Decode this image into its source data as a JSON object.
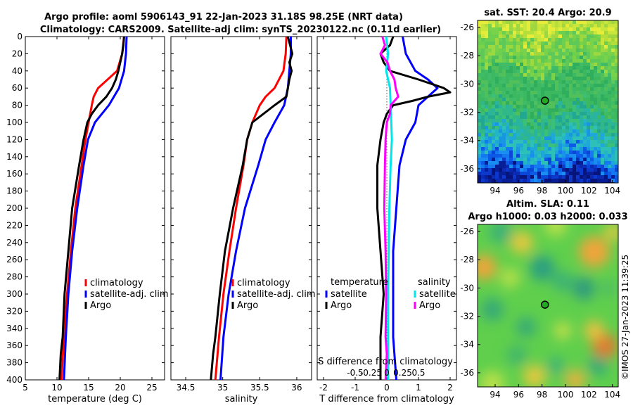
{
  "title_line1": "Argo profile: aoml 5906143_91 22-Jan-2023 31.18S 98.25E (NRT data)",
  "title_line2": "Climatology: CARS2009. Satellite-adj clim: synTS_20230122.nc (0.11d earlier)",
  "watermark": "©IMOS 27-Jan-2023 11:39:25",
  "colors": {
    "red": "#ff0000",
    "blue": "#0000ff",
    "black": "#000000",
    "cyan": "#00e5ee",
    "magenta": "#ff00ff"
  },
  "chart_data": [
    {
      "id": "temperature",
      "type": "line",
      "xlabel": "temperature (deg C)",
      "ylabel": "",
      "xlim": [
        5,
        27
      ],
      "ylim": [
        400,
        0
      ],
      "xticks": [
        5,
        10,
        15,
        20,
        25
      ],
      "yticks": [
        0,
        20,
        40,
        60,
        80,
        100,
        120,
        140,
        160,
        180,
        200,
        220,
        240,
        260,
        280,
        300,
        320,
        340,
        360,
        380,
        400
      ],
      "legend": [
        "climatology",
        "satellite-adj. clim",
        "Argo"
      ],
      "series": [
        {
          "name": "climatology",
          "color": "red",
          "depth": [
            0,
            20,
            40,
            50,
            60,
            70,
            80,
            100,
            120,
            150,
            200,
            250,
            300,
            350,
            400
          ],
          "values": [
            20.6,
            20.3,
            19.5,
            18.0,
            16.5,
            15.8,
            15.5,
            15.0,
            14.5,
            13.9,
            12.9,
            12.2,
            11.6,
            11.1,
            10.7
          ]
        },
        {
          "name": "satellite-adj. clim",
          "color": "blue",
          "depth": [
            0,
            20,
            40,
            60,
            80,
            100,
            120,
            150,
            200,
            250,
            300,
            350,
            400
          ],
          "values": [
            21.0,
            20.9,
            20.6,
            19.8,
            18.2,
            16.0,
            14.9,
            14.2,
            13.2,
            12.4,
            11.8,
            11.4,
            11.1
          ]
        },
        {
          "name": "Argo",
          "color": "black",
          "depth": [
            0,
            10,
            20,
            30,
            40,
            50,
            60,
            70,
            80,
            90,
            100,
            120,
            150,
            200,
            250,
            300,
            350,
            370,
            400
          ],
          "values": [
            20.6,
            20.5,
            20.3,
            20.0,
            19.7,
            19.3,
            18.7,
            17.8,
            16.5,
            15.5,
            14.8,
            14.2,
            13.5,
            12.4,
            11.8,
            11.2,
            10.9,
            10.6,
            10.4
          ]
        }
      ]
    },
    {
      "id": "salinity",
      "type": "line",
      "xlabel": "salinity",
      "xlim": [
        34.3,
        36.2
      ],
      "ylim": [
        400,
        0
      ],
      "xticks": [
        34.5,
        35,
        35.5,
        36
      ],
      "xticklabels": [
        "34.5",
        "35",
        "35.5",
        "36"
      ],
      "legend": [
        "climatology",
        "satellite-adj. clim",
        "Argo"
      ],
      "series": [
        {
          "name": "climatology",
          "color": "red",
          "depth": [
            0,
            20,
            40,
            60,
            70,
            80,
            100,
            120,
            150,
            200,
            250,
            300,
            350,
            400
          ],
          "values": [
            35.86,
            35.85,
            35.82,
            35.7,
            35.58,
            35.5,
            35.4,
            35.33,
            35.28,
            35.18,
            35.09,
            35.01,
            34.95,
            34.9
          ]
        },
        {
          "name": "satellite-adj. clim",
          "color": "blue",
          "depth": [
            0,
            20,
            40,
            60,
            80,
            100,
            120,
            150,
            200,
            250,
            300,
            350,
            400
          ],
          "values": [
            35.92,
            35.92,
            35.9,
            35.88,
            35.83,
            35.7,
            35.58,
            35.48,
            35.3,
            35.18,
            35.08,
            35.01,
            34.97
          ]
        },
        {
          "name": "Argo",
          "color": "black",
          "depth": [
            0,
            10,
            20,
            30,
            40,
            50,
            60,
            70,
            80,
            90,
            100,
            120,
            150,
            200,
            250,
            300,
            350,
            370,
            400
          ],
          "values": [
            35.88,
            35.91,
            35.94,
            35.9,
            35.93,
            35.9,
            35.88,
            35.86,
            35.7,
            35.55,
            35.4,
            35.33,
            35.27,
            35.14,
            35.03,
            34.96,
            34.9,
            34.87,
            34.84
          ]
        }
      ]
    },
    {
      "id": "difference",
      "type": "line",
      "xlabel": "T difference from climatology",
      "xlabel_top": "S difference from climatology",
      "xlim": [
        -2.2,
        2.2
      ],
      "ylim": [
        400,
        0
      ],
      "xticks": [
        -2,
        -1,
        0,
        1,
        2
      ],
      "s_xticks": [
        -0.5,
        -0.25,
        0,
        0.25,
        0.5
      ],
      "s_xticklabels": [
        "-0.5",
        "-0.25",
        "0",
        "0.25",
        "0.5"
      ],
      "legend_temperature_title": "temperature",
      "legend_salinity_title": "salinity",
      "legend_temperature": [
        "satellite",
        "Argo"
      ],
      "legend_salinity": [
        "satellite",
        "Argo"
      ],
      "series": [
        {
          "name": "temperature satellite",
          "color": "blue",
          "depth": [
            0,
            20,
            40,
            50,
            60,
            80,
            100,
            120,
            150,
            200,
            250,
            300,
            350,
            400
          ],
          "values": [
            0.5,
            0.6,
            0.9,
            1.3,
            1.6,
            1.0,
            0.9,
            0.6,
            0.4,
            0.3,
            0.2,
            0.2,
            0.2,
            0.3
          ]
        },
        {
          "name": "temperature Argo",
          "color": "black",
          "depth": [
            0,
            10,
            20,
            30,
            40,
            50,
            60,
            65,
            70,
            75,
            80,
            90,
            100,
            120,
            150,
            200,
            250,
            300,
            350,
            400
          ],
          "values": [
            0.2,
            0.1,
            -0.2,
            -0.1,
            0.1,
            1.0,
            1.8,
            2.0,
            1.3,
            0.8,
            0.2,
            0.0,
            -0.1,
            -0.2,
            -0.3,
            -0.3,
            -0.2,
            -0.1,
            -0.2,
            -0.2
          ]
        },
        {
          "name": "salinity satellite",
          "color": "cyan",
          "depth": [
            0,
            20,
            40,
            60,
            80,
            100,
            120,
            150,
            200,
            250,
            300,
            350,
            400
          ],
          "values": [
            -0.01,
            0.02,
            -0.01,
            0.05,
            0.06,
            0.07,
            0.08,
            0.06,
            0.04,
            0.03,
            0.02,
            0.02,
            0.02
          ]
        },
        {
          "name": "salinity Argo",
          "color": "magenta",
          "depth": [
            0,
            10,
            20,
            30,
            40,
            50,
            60,
            70,
            80,
            90,
            100,
            120,
            150,
            200,
            250,
            300,
            350,
            370,
            400
          ],
          "values": [
            -0.07,
            -0.03,
            -0.1,
            0.01,
            0.05,
            0.12,
            0.14,
            0.18,
            0.06,
            0.05,
            0.0,
            -0.02,
            -0.03,
            -0.04,
            -0.02,
            -0.01,
            -0.02,
            0.0,
            -0.02
          ]
        }
      ]
    },
    {
      "id": "sst_map",
      "type": "heatmap",
      "title": "sat. SST: 20.4 Argo: 20.9",
      "xlim": [
        92.5,
        104.5
      ],
      "ylim": [
        -37,
        -25.5
      ],
      "xticks": [
        94,
        96,
        98,
        100,
        102,
        104
      ],
      "yticks": [
        -26,
        -28,
        -30,
        -32,
        -34,
        -36
      ],
      "marker": {
        "lon": 98.25,
        "lat": -31.18
      }
    },
    {
      "id": "sla_map",
      "type": "heatmap",
      "title_line1": "Altim. SLA: 0.11",
      "title_line2": "Argo h1000: 0.03 h2000: 0.033",
      "xlim": [
        92.5,
        104.5
      ],
      "ylim": [
        -37,
        -25.5
      ],
      "xticks": [
        94,
        96,
        98,
        100,
        102,
        104
      ],
      "yticks": [
        -26,
        -28,
        -30,
        -32,
        -34,
        -36
      ],
      "marker": {
        "lon": 98.25,
        "lat": -31.18
      }
    }
  ]
}
